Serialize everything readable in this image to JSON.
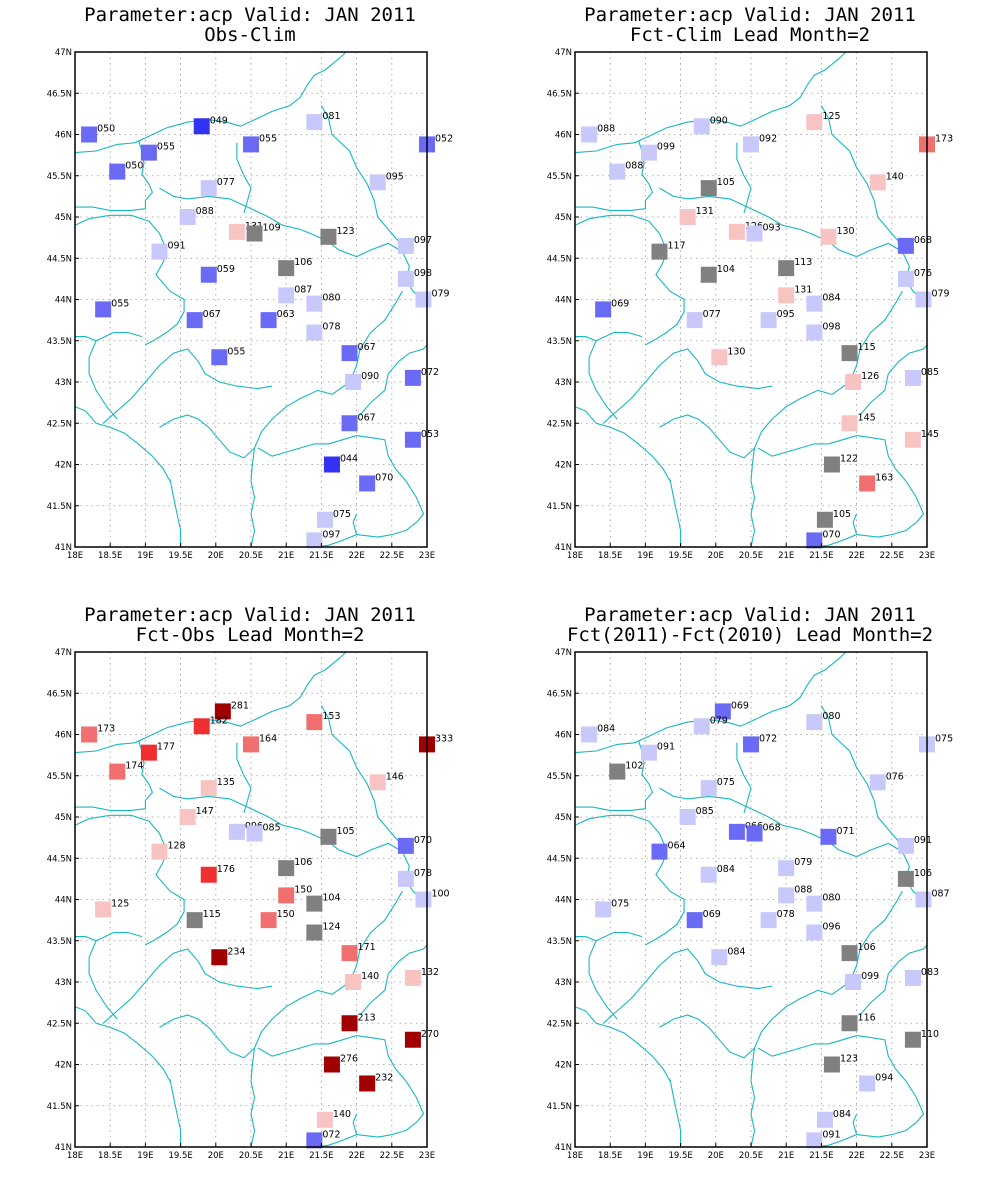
{
  "panels": [
    {
      "title1": "Parameter:acp Valid: JAN 2011",
      "title2": "Obs-Clim",
      "stations": [
        {
          "lon": 18.2,
          "lat": 46.0,
          "v": "050",
          "c": "#6a6af5"
        },
        {
          "lon": 19.8,
          "lat": 46.1,
          "v": "049",
          "c": "#3232f2"
        },
        {
          "lon": 21.4,
          "lat": 46.15,
          "v": "081",
          "c": "#c8c8fa"
        },
        {
          "lon": 23.0,
          "lat": 45.88,
          "v": "052",
          "c": "#6a6af5"
        },
        {
          "lon": 19.05,
          "lat": 45.78,
          "v": "055",
          "c": "#6a6af5"
        },
        {
          "lon": 20.5,
          "lat": 45.88,
          "v": "055",
          "c": "#6a6af5"
        },
        {
          "lon": 18.6,
          "lat": 45.55,
          "v": "050",
          "c": "#6a6af5"
        },
        {
          "lon": 19.9,
          "lat": 45.35,
          "v": "077",
          "c": "#c8c8fa"
        },
        {
          "lon": 22.3,
          "lat": 45.42,
          "v": "095",
          "c": "#c8c8fa"
        },
        {
          "lon": 19.6,
          "lat": 45.0,
          "v": "088",
          "c": "#c8c8fa"
        },
        {
          "lon": 20.3,
          "lat": 44.82,
          "v": "131",
          "c": "#f8c3c3"
        },
        {
          "lon": 20.55,
          "lat": 44.8,
          "v": "109",
          "c": "#808080"
        },
        {
          "lon": 21.6,
          "lat": 44.76,
          "v": "123",
          "c": "#808080"
        },
        {
          "lon": 22.7,
          "lat": 44.65,
          "v": "097",
          "c": "#c8c8fa"
        },
        {
          "lon": 19.2,
          "lat": 44.58,
          "v": "091",
          "c": "#c8c8fa"
        },
        {
          "lon": 21.0,
          "lat": 44.38,
          "v": "106",
          "c": "#808080"
        },
        {
          "lon": 19.9,
          "lat": 44.3,
          "v": "059",
          "c": "#6a6af5"
        },
        {
          "lon": 22.7,
          "lat": 44.25,
          "v": "098",
          "c": "#c8c8fa"
        },
        {
          "lon": 21.0,
          "lat": 44.05,
          "v": "087",
          "c": "#c8c8fa"
        },
        {
          "lon": 21.4,
          "lat": 43.95,
          "v": "080",
          "c": "#c8c8fa"
        },
        {
          "lon": 22.95,
          "lat": 44.0,
          "v": "079",
          "c": "#c8c8fa"
        },
        {
          "lon": 18.4,
          "lat": 43.88,
          "v": "055",
          "c": "#6a6af5"
        },
        {
          "lon": 19.7,
          "lat": 43.75,
          "v": "067",
          "c": "#6a6af5"
        },
        {
          "lon": 20.75,
          "lat": 43.75,
          "v": "063",
          "c": "#6a6af5"
        },
        {
          "lon": 21.4,
          "lat": 43.6,
          "v": "078",
          "c": "#c8c8fa"
        },
        {
          "lon": 20.05,
          "lat": 43.3,
          "v": "055",
          "c": "#6a6af5"
        },
        {
          "lon": 21.9,
          "lat": 43.35,
          "v": "067",
          "c": "#6a6af5"
        },
        {
          "lon": 21.95,
          "lat": 43.0,
          "v": "090",
          "c": "#c8c8fa"
        },
        {
          "lon": 22.8,
          "lat": 43.05,
          "v": "072",
          "c": "#6a6af5"
        },
        {
          "lon": 21.9,
          "lat": 42.5,
          "v": "067",
          "c": "#6a6af5"
        },
        {
          "lon": 22.8,
          "lat": 42.3,
          "v": "053",
          "c": "#6a6af5"
        },
        {
          "lon": 21.65,
          "lat": 42.0,
          "v": "044",
          "c": "#3232f2"
        },
        {
          "lon": 22.15,
          "lat": 41.77,
          "v": "070",
          "c": "#6a6af5"
        },
        {
          "lon": 21.55,
          "lat": 41.33,
          "v": "075",
          "c": "#c8c8fa"
        },
        {
          "lon": 21.4,
          "lat": 41.08,
          "v": "097",
          "c": "#c8c8fa"
        }
      ]
    },
    {
      "title1": "Parameter:acp Valid: JAN 2011",
      "title2": "Fct-Clim Lead Month=2",
      "stations": [
        {
          "lon": 18.2,
          "lat": 46.0,
          "v": "088",
          "c": "#c8c8fa"
        },
        {
          "lon": 19.8,
          "lat": 46.1,
          "v": "090",
          "c": "#c8c8fa"
        },
        {
          "lon": 21.4,
          "lat": 46.15,
          "v": "125",
          "c": "#f8c3c3"
        },
        {
          "lon": 23.0,
          "lat": 45.88,
          "v": "173",
          "c": "#f07070"
        },
        {
          "lon": 19.05,
          "lat": 45.78,
          "v": "099",
          "c": "#c8c8fa"
        },
        {
          "lon": 20.5,
          "lat": 45.88,
          "v": "092",
          "c": "#c8c8fa"
        },
        {
          "lon": 18.6,
          "lat": 45.55,
          "v": "088",
          "c": "#c8c8fa"
        },
        {
          "lon": 19.9,
          "lat": 45.35,
          "v": "105",
          "c": "#808080"
        },
        {
          "lon": 22.3,
          "lat": 45.42,
          "v": "140",
          "c": "#f8c3c3"
        },
        {
          "lon": 19.6,
          "lat": 45.0,
          "v": "131",
          "c": "#f8c3c3"
        },
        {
          "lon": 20.3,
          "lat": 44.82,
          "v": "126",
          "c": "#f8c3c3"
        },
        {
          "lon": 20.55,
          "lat": 44.8,
          "v": "093",
          "c": "#c8c8fa"
        },
        {
          "lon": 21.6,
          "lat": 44.76,
          "v": "130",
          "c": "#f8c3c3"
        },
        {
          "lon": 22.7,
          "lat": 44.65,
          "v": "068",
          "c": "#6a6af5"
        },
        {
          "lon": 19.2,
          "lat": 44.58,
          "v": "117",
          "c": "#808080"
        },
        {
          "lon": 21.0,
          "lat": 44.38,
          "v": "113",
          "c": "#808080"
        },
        {
          "lon": 19.9,
          "lat": 44.3,
          "v": "104",
          "c": "#808080"
        },
        {
          "lon": 22.7,
          "lat": 44.25,
          "v": "076",
          "c": "#c8c8fa"
        },
        {
          "lon": 21.0,
          "lat": 44.05,
          "v": "131",
          "c": "#f8c3c3"
        },
        {
          "lon": 21.4,
          "lat": 43.95,
          "v": "084",
          "c": "#c8c8fa"
        },
        {
          "lon": 22.95,
          "lat": 44.0,
          "v": "079",
          "c": "#c8c8fa"
        },
        {
          "lon": 18.4,
          "lat": 43.88,
          "v": "069",
          "c": "#6a6af5"
        },
        {
          "lon": 19.7,
          "lat": 43.75,
          "v": "077",
          "c": "#c8c8fa"
        },
        {
          "lon": 20.75,
          "lat": 43.75,
          "v": "095",
          "c": "#c8c8fa"
        },
        {
          "lon": 21.4,
          "lat": 43.6,
          "v": "098",
          "c": "#c8c8fa"
        },
        {
          "lon": 20.05,
          "lat": 43.3,
          "v": "130",
          "c": "#f8c3c3"
        },
        {
          "lon": 21.9,
          "lat": 43.35,
          "v": "115",
          "c": "#808080"
        },
        {
          "lon": 21.95,
          "lat": 43.0,
          "v": "126",
          "c": "#f8c3c3"
        },
        {
          "lon": 22.8,
          "lat": 43.05,
          "v": "085",
          "c": "#c8c8fa"
        },
        {
          "lon": 21.9,
          "lat": 42.5,
          "v": "145",
          "c": "#f8c3c3"
        },
        {
          "lon": 22.8,
          "lat": 42.3,
          "v": "145",
          "c": "#f8c3c3"
        },
        {
          "lon": 21.65,
          "lat": 42.0,
          "v": "122",
          "c": "#808080"
        },
        {
          "lon": 22.15,
          "lat": 41.77,
          "v": "163",
          "c": "#f07070"
        },
        {
          "lon": 21.55,
          "lat": 41.33,
          "v": "105",
          "c": "#808080"
        },
        {
          "lon": 21.4,
          "lat": 41.08,
          "v": "070",
          "c": "#6a6af5"
        }
      ]
    },
    {
      "title1": "Parameter:acp Valid: JAN 2011",
      "title2": "Fct-Obs Lead Month=2",
      "stations": [
        {
          "lon": 18.2,
          "lat": 46.0,
          "v": "173",
          "c": "#f07070"
        },
        {
          "lon": 20.1,
          "lat": 46.28,
          "v": "281",
          "c": "#a00000"
        },
        {
          "lon": 19.8,
          "lat": 46.1,
          "v": "182",
          "c": "#f03030"
        },
        {
          "lon": 21.4,
          "lat": 46.15,
          "v": "153",
          "c": "#f07070"
        },
        {
          "lon": 23.0,
          "lat": 45.88,
          "v": "333",
          "c": "#a00000"
        },
        {
          "lon": 19.05,
          "lat": 45.78,
          "v": "177",
          "c": "#f03030"
        },
        {
          "lon": 20.5,
          "lat": 45.88,
          "v": "164",
          "c": "#f07070"
        },
        {
          "lon": 18.6,
          "lat": 45.55,
          "v": "174",
          "c": "#f07070"
        },
        {
          "lon": 19.9,
          "lat": 45.35,
          "v": "135",
          "c": "#f8c3c3"
        },
        {
          "lon": 22.3,
          "lat": 45.42,
          "v": "146",
          "c": "#f8c3c3"
        },
        {
          "lon": 19.6,
          "lat": 45.0,
          "v": "147",
          "c": "#f8c3c3"
        },
        {
          "lon": 20.3,
          "lat": 44.82,
          "v": "096",
          "c": "#c8c8fa"
        },
        {
          "lon": 20.55,
          "lat": 44.8,
          "v": "085",
          "c": "#c8c8fa"
        },
        {
          "lon": 21.6,
          "lat": 44.76,
          "v": "105",
          "c": "#808080"
        },
        {
          "lon": 22.7,
          "lat": 44.65,
          "v": "070",
          "c": "#6a6af5"
        },
        {
          "lon": 19.2,
          "lat": 44.58,
          "v": "128",
          "c": "#f8c3c3"
        },
        {
          "lon": 21.0,
          "lat": 44.38,
          "v": "106",
          "c": "#808080"
        },
        {
          "lon": 19.9,
          "lat": 44.3,
          "v": "176",
          "c": "#f03030"
        },
        {
          "lon": 22.7,
          "lat": 44.25,
          "v": "078",
          "c": "#c8c8fa"
        },
        {
          "lon": 21.0,
          "lat": 44.05,
          "v": "150",
          "c": "#f07070"
        },
        {
          "lon": 21.4,
          "lat": 43.95,
          "v": "104",
          "c": "#808080"
        },
        {
          "lon": 22.95,
          "lat": 44.0,
          "v": "100",
          "c": "#c8c8fa"
        },
        {
          "lon": 18.4,
          "lat": 43.88,
          "v": "125",
          "c": "#f8c3c3"
        },
        {
          "lon": 19.7,
          "lat": 43.75,
          "v": "115",
          "c": "#808080"
        },
        {
          "lon": 20.75,
          "lat": 43.75,
          "v": "150",
          "c": "#f07070"
        },
        {
          "lon": 21.4,
          "lat": 43.6,
          "v": "124",
          "c": "#808080"
        },
        {
          "lon": 20.05,
          "lat": 43.3,
          "v": "234",
          "c": "#a00000"
        },
        {
          "lon": 21.9,
          "lat": 43.35,
          "v": "171",
          "c": "#f07070"
        },
        {
          "lon": 21.95,
          "lat": 43.0,
          "v": "140",
          "c": "#f8c3c3"
        },
        {
          "lon": 22.8,
          "lat": 43.05,
          "v": "132",
          "c": "#f8c3c3"
        },
        {
          "lon": 21.9,
          "lat": 42.5,
          "v": "213",
          "c": "#a00000"
        },
        {
          "lon": 22.8,
          "lat": 42.3,
          "v": "270",
          "c": "#a00000"
        },
        {
          "lon": 21.65,
          "lat": 42.0,
          "v": "276",
          "c": "#a00000"
        },
        {
          "lon": 22.15,
          "lat": 41.77,
          "v": "232",
          "c": "#a00000"
        },
        {
          "lon": 21.55,
          "lat": 41.33,
          "v": "140",
          "c": "#f8c3c3"
        },
        {
          "lon": 21.4,
          "lat": 41.08,
          "v": "072",
          "c": "#6a6af5"
        }
      ]
    },
    {
      "title1": "Parameter:acp Valid: JAN 2011",
      "title2": "Fct(2011)-Fct(2010) Lead Month=2",
      "stations": [
        {
          "lon": 18.2,
          "lat": 46.0,
          "v": "084",
          "c": "#c8c8fa"
        },
        {
          "lon": 20.1,
          "lat": 46.28,
          "v": "069",
          "c": "#6a6af5"
        },
        {
          "lon": 19.8,
          "lat": 46.1,
          "v": "079",
          "c": "#c8c8fa"
        },
        {
          "lon": 21.4,
          "lat": 46.15,
          "v": "080",
          "c": "#c8c8fa"
        },
        {
          "lon": 23.0,
          "lat": 45.88,
          "v": "075",
          "c": "#c8c8fa"
        },
        {
          "lon": 19.05,
          "lat": 45.78,
          "v": "091",
          "c": "#c8c8fa"
        },
        {
          "lon": 20.5,
          "lat": 45.88,
          "v": "072",
          "c": "#6a6af5"
        },
        {
          "lon": 18.6,
          "lat": 45.55,
          "v": "102",
          "c": "#808080"
        },
        {
          "lon": 19.9,
          "lat": 45.35,
          "v": "075",
          "c": "#c8c8fa"
        },
        {
          "lon": 22.3,
          "lat": 45.42,
          "v": "076",
          "c": "#c8c8fa"
        },
        {
          "lon": 19.6,
          "lat": 45.0,
          "v": "085",
          "c": "#c8c8fa"
        },
        {
          "lon": 20.3,
          "lat": 44.82,
          "v": "066",
          "c": "#6a6af5"
        },
        {
          "lon": 20.55,
          "lat": 44.8,
          "v": "068",
          "c": "#6a6af5"
        },
        {
          "lon": 21.6,
          "lat": 44.76,
          "v": "071",
          "c": "#6a6af5"
        },
        {
          "lon": 22.7,
          "lat": 44.65,
          "v": "091",
          "c": "#c8c8fa"
        },
        {
          "lon": 19.2,
          "lat": 44.58,
          "v": "064",
          "c": "#6a6af5"
        },
        {
          "lon": 21.0,
          "lat": 44.38,
          "v": "079",
          "c": "#c8c8fa"
        },
        {
          "lon": 19.9,
          "lat": 44.3,
          "v": "084",
          "c": "#c8c8fa"
        },
        {
          "lon": 22.7,
          "lat": 44.25,
          "v": "106",
          "c": "#808080"
        },
        {
          "lon": 21.0,
          "lat": 44.05,
          "v": "088",
          "c": "#c8c8fa"
        },
        {
          "lon": 21.4,
          "lat": 43.95,
          "v": "080",
          "c": "#c8c8fa"
        },
        {
          "lon": 22.95,
          "lat": 44.0,
          "v": "087",
          "c": "#c8c8fa"
        },
        {
          "lon": 18.4,
          "lat": 43.88,
          "v": "075",
          "c": "#c8c8fa"
        },
        {
          "lon": 19.7,
          "lat": 43.75,
          "v": "069",
          "c": "#6a6af5"
        },
        {
          "lon": 20.75,
          "lat": 43.75,
          "v": "078",
          "c": "#c8c8fa"
        },
        {
          "lon": 21.4,
          "lat": 43.6,
          "v": "096",
          "c": "#c8c8fa"
        },
        {
          "lon": 20.05,
          "lat": 43.3,
          "v": "084",
          "c": "#c8c8fa"
        },
        {
          "lon": 21.9,
          "lat": 43.35,
          "v": "106",
          "c": "#808080"
        },
        {
          "lon": 21.95,
          "lat": 43.0,
          "v": "099",
          "c": "#c8c8fa"
        },
        {
          "lon": 22.8,
          "lat": 43.05,
          "v": "083",
          "c": "#c8c8fa"
        },
        {
          "lon": 21.9,
          "lat": 42.5,
          "v": "116",
          "c": "#808080"
        },
        {
          "lon": 22.8,
          "lat": 42.3,
          "v": "110",
          "c": "#808080"
        },
        {
          "lon": 21.65,
          "lat": 42.0,
          "v": "123",
          "c": "#808080"
        },
        {
          "lon": 22.15,
          "lat": 41.77,
          "v": "094",
          "c": "#c8c8fa"
        },
        {
          "lon": 21.55,
          "lat": 41.33,
          "v": "084",
          "c": "#c8c8fa"
        },
        {
          "lon": 21.4,
          "lat": 41.08,
          "v": "091",
          "c": "#c8c8fa"
        }
      ]
    }
  ],
  "axes": {
    "x_ticks": [
      "18E",
      "18.5E",
      "19E",
      "19.5E",
      "20E",
      "20.5E",
      "21E",
      "21.5E",
      "22E",
      "22.5E",
      "23E"
    ],
    "y_ticks": [
      "41N",
      "41.5N",
      "42N",
      "42.5N",
      "43N",
      "43.5N",
      "44N",
      "44.5N",
      "45N",
      "45.5N",
      "46N",
      "46.5N",
      "47N"
    ],
    "lon_range": [
      18,
      23
    ],
    "lat_range": [
      41,
      47
    ]
  },
  "colors": {
    "coast": "#18b8c0"
  }
}
